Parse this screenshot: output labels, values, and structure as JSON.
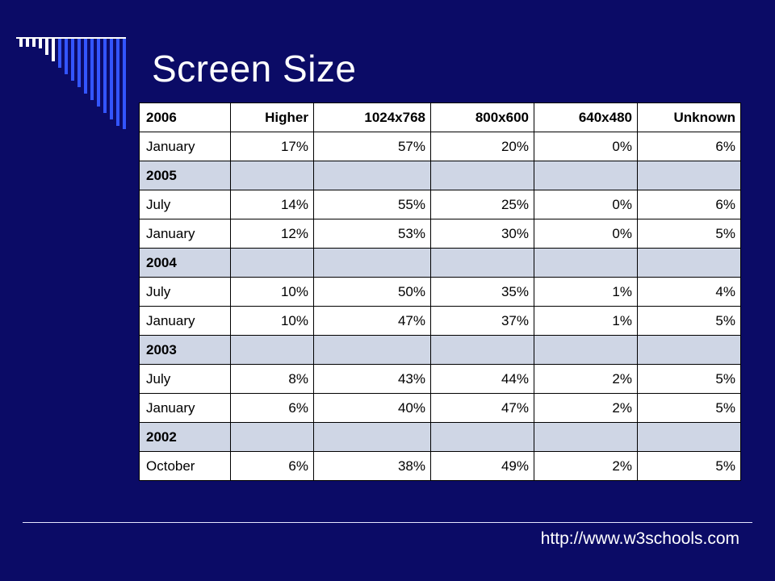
{
  "slide": {
    "title": "Screen Size",
    "footer_url": "http://www.w3schools.com"
  },
  "colors": {
    "background": "#0b0b66",
    "year_row": "#cfd6e5",
    "bars": "#ffffff",
    "bars_accent": "#3355ff"
  },
  "table": {
    "headers": [
      "2006",
      "Higher",
      "1024x768",
      "800x600",
      "640x480",
      "Unknown"
    ],
    "rows": [
      {
        "label": "January",
        "values": [
          "17%",
          "57%",
          "20%",
          "0%",
          "6%"
        ]
      },
      {
        "year": "2005"
      },
      {
        "label": "July",
        "values": [
          "14%",
          "55%",
          "25%",
          "0%",
          "6%"
        ]
      },
      {
        "label": "January",
        "values": [
          "12%",
          "53%",
          "30%",
          "0%",
          "5%"
        ]
      },
      {
        "year": "2004"
      },
      {
        "label": "July",
        "values": [
          "10%",
          "50%",
          "35%",
          "1%",
          "4%"
        ]
      },
      {
        "label": "January",
        "values": [
          "10%",
          "47%",
          "37%",
          "1%",
          "5%"
        ]
      },
      {
        "year": "2003"
      },
      {
        "label": "July",
        "values": [
          "8%",
          "43%",
          "44%",
          "2%",
          "5%"
        ]
      },
      {
        "label": "January",
        "values": [
          "6%",
          "40%",
          "47%",
          "2%",
          "5%"
        ]
      },
      {
        "year": "2002"
      },
      {
        "label": "October",
        "values": [
          "6%",
          "38%",
          "49%",
          "2%",
          "5%"
        ]
      }
    ]
  }
}
